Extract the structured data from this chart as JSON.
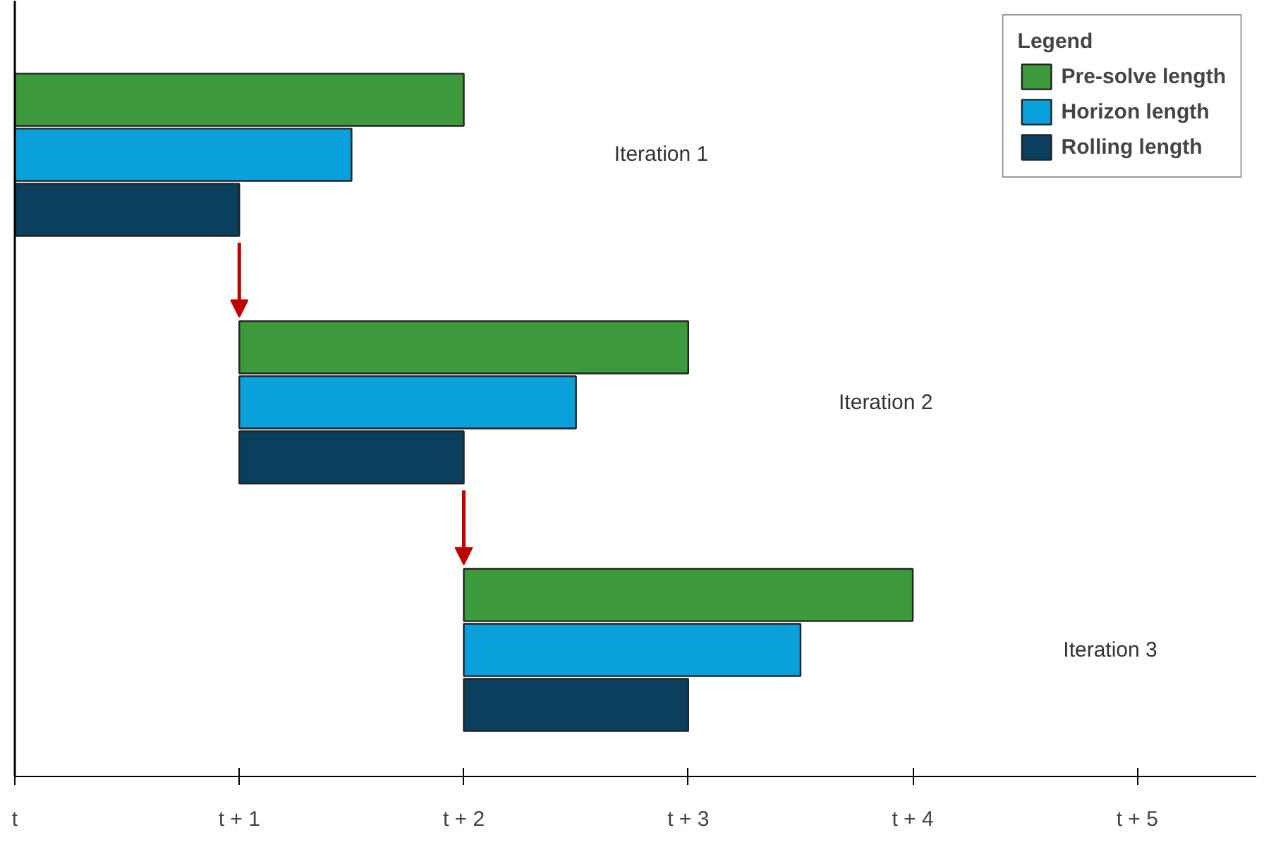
{
  "chart_data": {
    "type": "bar",
    "orientation": "horizontal",
    "legend_title": "Legend",
    "legend": "top right",
    "grid": false,
    "categories": [
      "Iteration 1",
      "Iteration 2",
      "Iteration 3"
    ],
    "series": [
      {
        "name": "Pre-solve length",
        "color": "#3c9a3c",
        "base": [
          0,
          1,
          2
        ],
        "values": [
          2,
          2,
          2
        ]
      },
      {
        "name": "Horizon length",
        "color": "#0aa0dc",
        "base": [
          0,
          1,
          2
        ],
        "values": [
          1.5,
          1.5,
          1.5
        ]
      },
      {
        "name": "Rolling length",
        "color": "#0b3f5e",
        "base": [
          0,
          1,
          2
        ],
        "values": [
          1,
          1,
          1
        ]
      }
    ],
    "xlim": [
      0,
      5.53
    ],
    "xticks": [
      {
        "value": 0,
        "label": "t"
      },
      {
        "value": 1,
        "label": "t + 1"
      },
      {
        "value": 2,
        "label": "t + 2"
      },
      {
        "value": 3,
        "label": "t + 3"
      },
      {
        "value": 4,
        "label": "t + 4"
      },
      {
        "value": 5,
        "label": "t + 5"
      }
    ]
  }
}
